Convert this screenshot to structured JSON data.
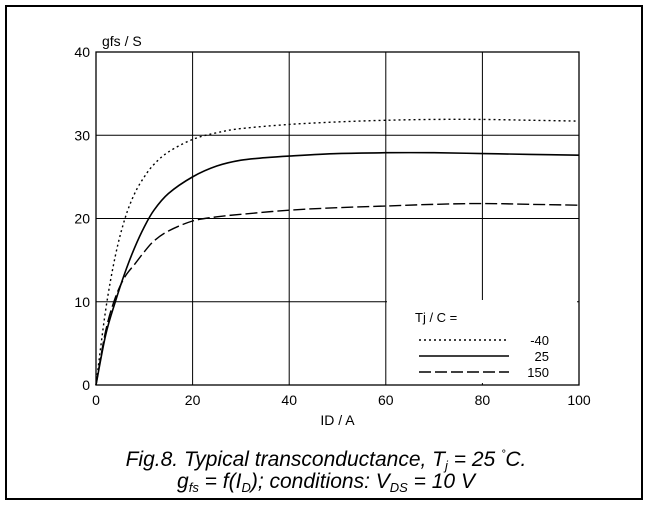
{
  "chart_data": {
    "type": "line",
    "ylabel": "gfs / S",
    "xlabel": "ID / A",
    "xlim": [
      0,
      100
    ],
    "ylim": [
      0,
      40
    ],
    "xticks": [
      0,
      20,
      40,
      60,
      80,
      100
    ],
    "yticks": [
      0,
      10,
      20,
      30,
      40
    ],
    "grid": true,
    "legend_position": "bottom-right",
    "legend_title": "Tj / C =",
    "series": [
      {
        "name": "-40",
        "line_style": "dotted",
        "x": [
          0,
          2,
          4,
          6,
          8,
          10,
          12,
          15,
          20,
          25,
          30,
          40,
          50,
          60,
          70,
          80,
          90,
          100
        ],
        "y": [
          0,
          9,
          15.5,
          20,
          23,
          25,
          26.5,
          28,
          29.5,
          30.3,
          30.8,
          31.3,
          31.6,
          31.8,
          31.9,
          31.9,
          31.8,
          31.7
        ]
      },
      {
        "name": "25",
        "line_style": "solid",
        "x": [
          0,
          2,
          4,
          6,
          8,
          10,
          12,
          15,
          20,
          25,
          30,
          35,
          40,
          50,
          60,
          70,
          80,
          90,
          100
        ],
        "y": [
          0,
          6,
          10,
          13.5,
          16.5,
          19,
          21,
          23,
          25,
          26.3,
          27,
          27.3,
          27.5,
          27.8,
          27.9,
          27.9,
          27.8,
          27.7,
          27.6
        ]
      },
      {
        "name": "150",
        "line_style": "dashed",
        "x": [
          0,
          2,
          4,
          6,
          8,
          10,
          12,
          15,
          20,
          25,
          30,
          40,
          50,
          60,
          70,
          80,
          90,
          100
        ],
        "y": [
          0,
          6.5,
          10.5,
          13,
          14.5,
          16,
          17.3,
          18.5,
          19.7,
          20.2,
          20.5,
          21,
          21.3,
          21.5,
          21.7,
          21.8,
          21.7,
          21.6
        ]
      }
    ]
  },
  "caption": {
    "line1": {
      "prefix": "Fig.8.   Typical transconductance, T",
      "sub": "j",
      "middle": " = 25 ",
      "sup": "˚",
      "suffix": "C."
    },
    "line2": {
      "a": "g",
      "a_sub": "fs",
      "b": " = f(I",
      "b_sub": "D",
      "c": "); conditions: V",
      "c_sub": "DS",
      "d": " = 10 V"
    }
  }
}
